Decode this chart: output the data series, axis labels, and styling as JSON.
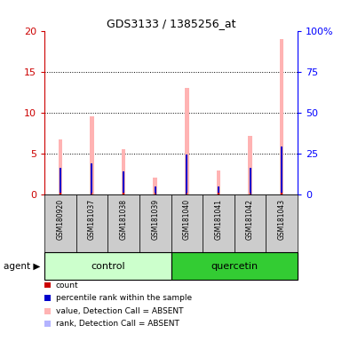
{
  "title": "GDS3133 / 1385256_at",
  "samples": [
    "GSM180920",
    "GSM181037",
    "GSM181038",
    "GSM181039",
    "GSM181040",
    "GSM181041",
    "GSM181042",
    "GSM181043"
  ],
  "count_values": [
    0.15,
    0.15,
    0.15,
    0.15,
    0.15,
    0.15,
    0.15,
    0.15
  ],
  "rank_values": [
    3.2,
    3.8,
    2.8,
    1.0,
    4.9,
    1.0,
    3.2,
    5.8
  ],
  "absent_value": [
    6.7,
    9.5,
    5.5,
    2.0,
    13.0,
    2.9,
    7.1,
    19.0
  ],
  "absent_rank": [
    3.2,
    3.8,
    2.8,
    1.0,
    4.9,
    1.0,
    3.2,
    5.8
  ],
  "ylim_left": [
    0,
    20
  ],
  "ylim_right": [
    0,
    100
  ],
  "yticks_left": [
    0,
    5,
    10,
    15,
    20
  ],
  "yticks_right": [
    0,
    25,
    50,
    75,
    100
  ],
  "yticklabels_right": [
    "0",
    "25",
    "50",
    "75",
    "100%"
  ],
  "color_count": "#cc0000",
  "color_rank": "#0000cc",
  "color_absent_value": "#ffb3b3",
  "color_absent_rank": "#b3b3ff",
  "color_control_bg": "#ccffcc",
  "color_quercetin_bg": "#33cc33",
  "color_sample_bg": "#cccccc",
  "legend_items": [
    {
      "label": "count",
      "color": "#cc0000"
    },
    {
      "label": "percentile rank within the sample",
      "color": "#0000cc"
    },
    {
      "label": "value, Detection Call = ABSENT",
      "color": "#ffb3b3"
    },
    {
      "label": "rank, Detection Call = ABSENT",
      "color": "#b3b3ff"
    }
  ]
}
